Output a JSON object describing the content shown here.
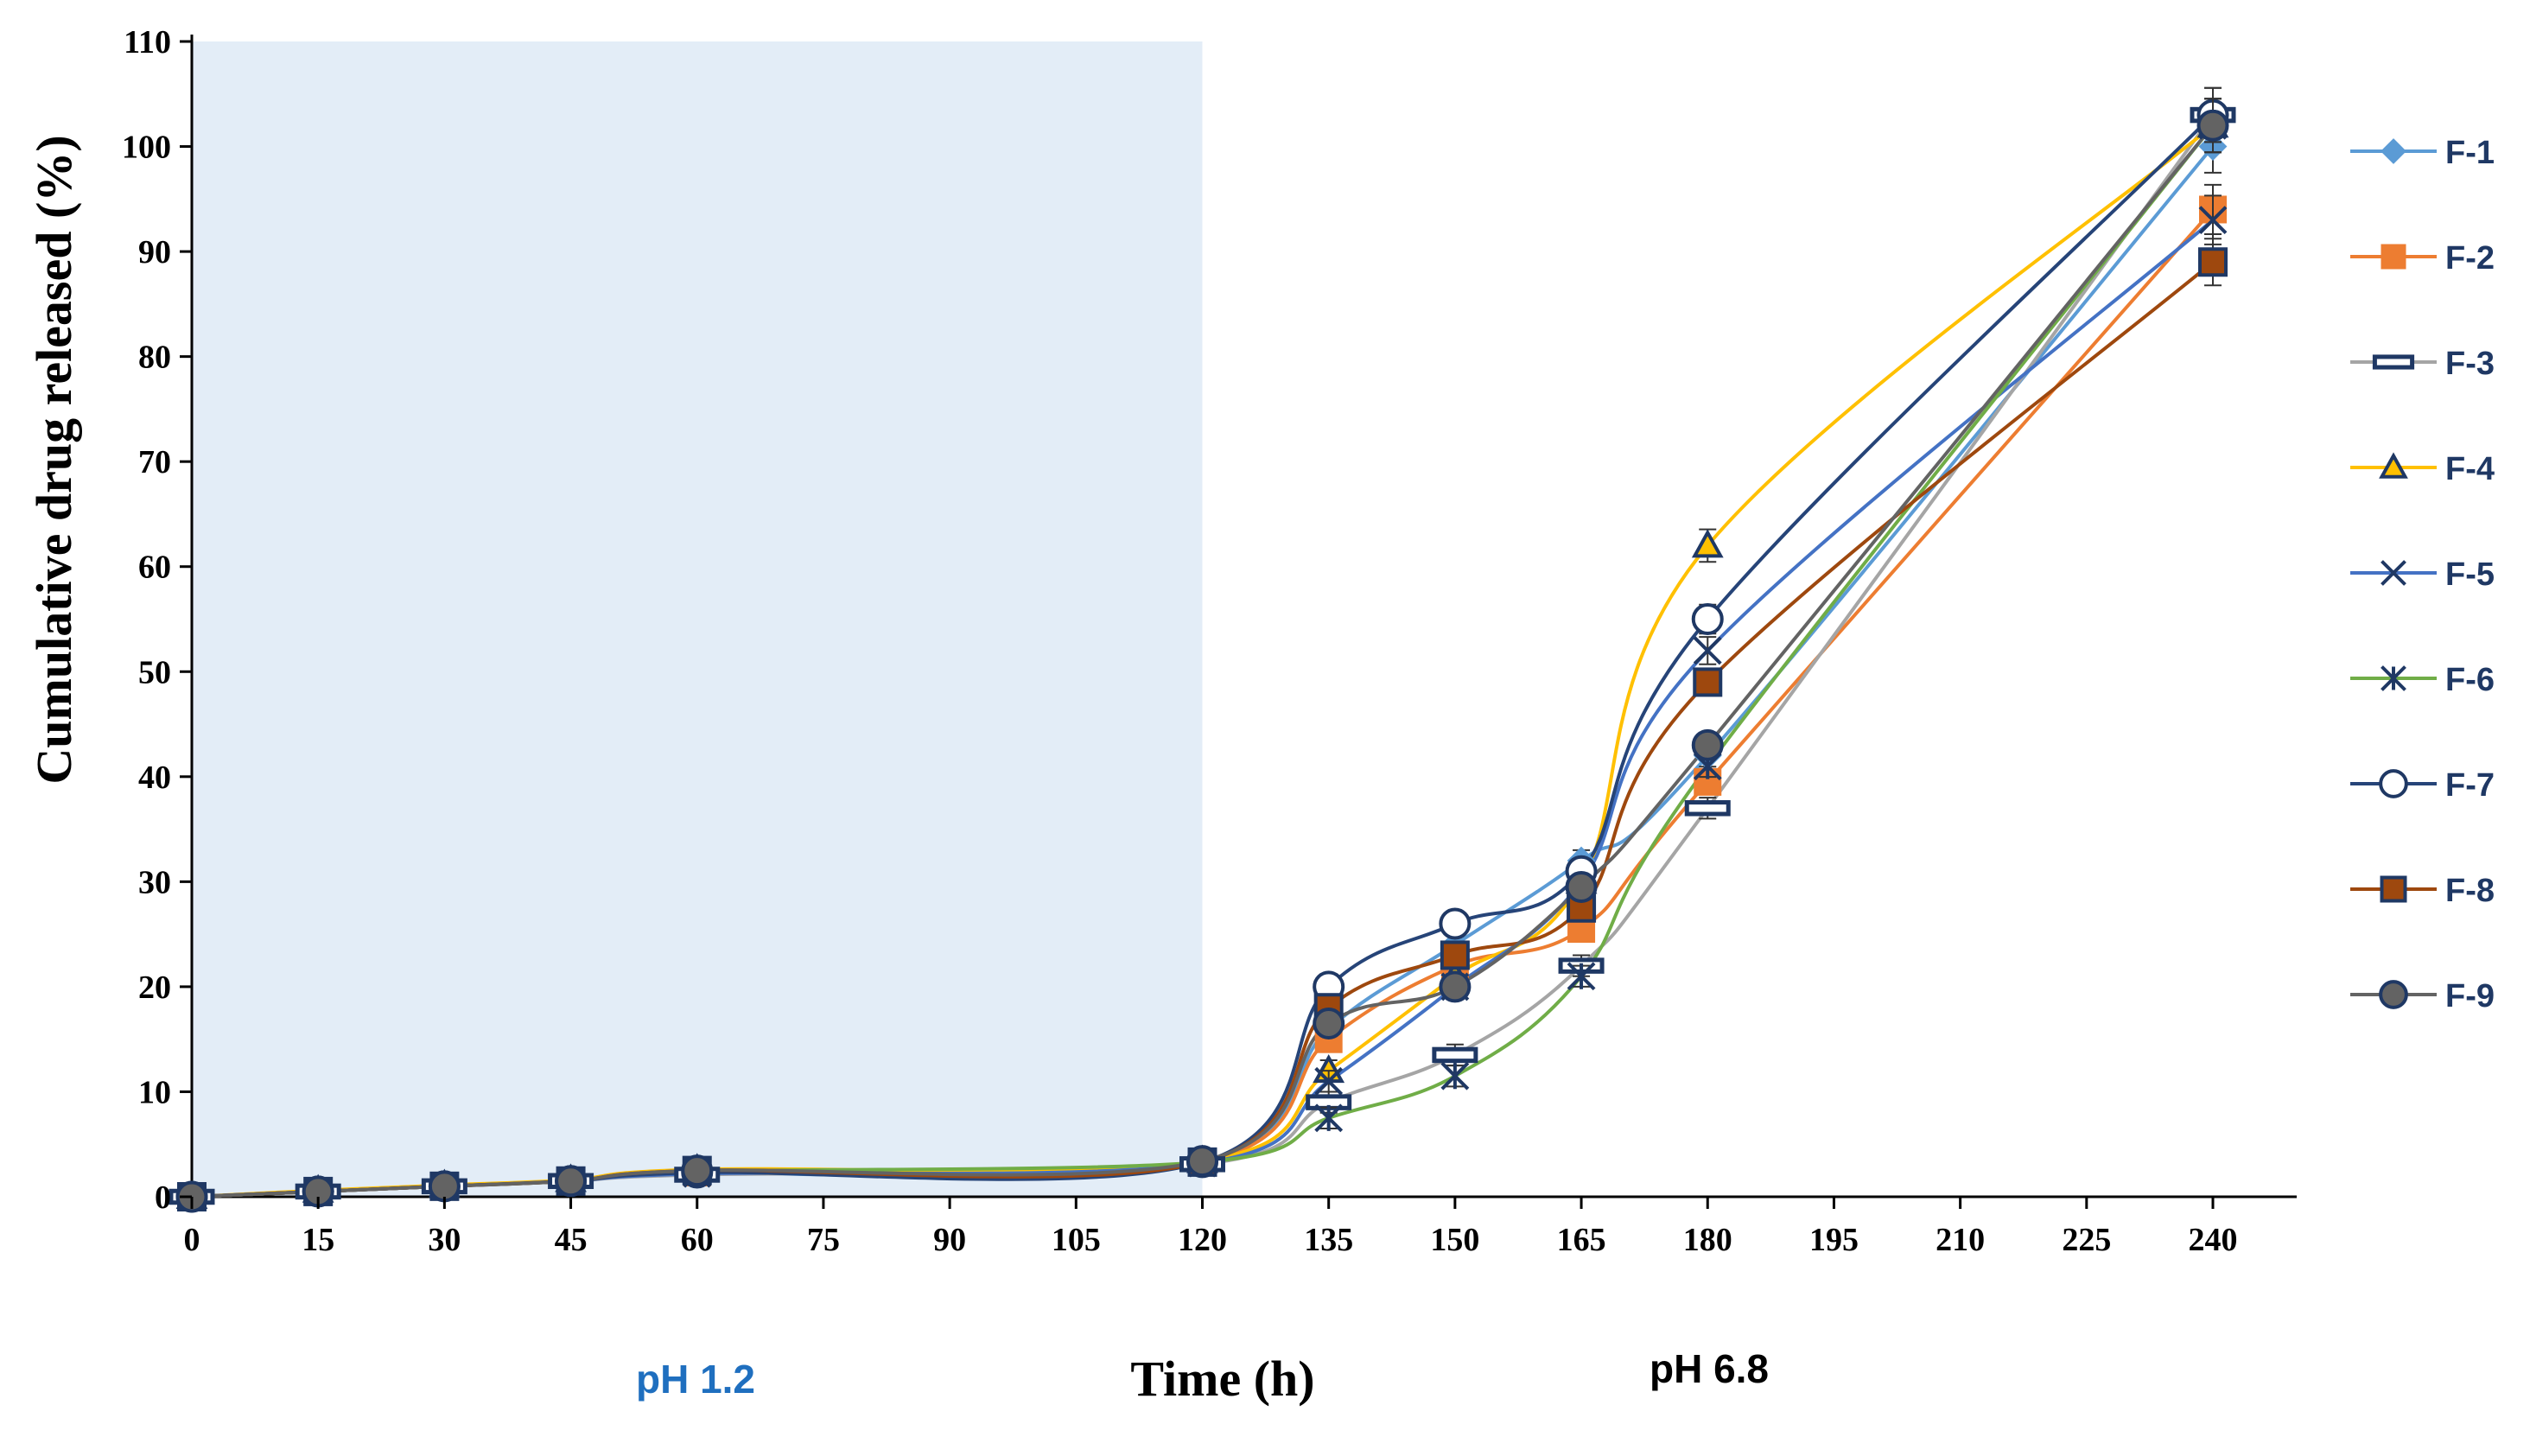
{
  "chart_data": {
    "type": "line",
    "title": "",
    "xlabel": "Time (h)",
    "ylabel": "Cumulative  drug released (%)",
    "xlim": [
      0,
      250
    ],
    "ylim": [
      0,
      110
    ],
    "x_ticks": [
      0,
      15,
      30,
      45,
      60,
      75,
      90,
      105,
      120,
      135,
      150,
      165,
      180,
      195,
      210,
      225,
      240
    ],
    "y_ticks": [
      0,
      10,
      20,
      30,
      40,
      50,
      60,
      70,
      80,
      90,
      100,
      110
    ],
    "x": [
      0,
      15,
      30,
      45,
      60,
      120,
      135,
      150,
      165,
      180,
      240
    ],
    "shaded_region": {
      "x_start": 0,
      "x_end": 120,
      "color": "#e3edf7"
    },
    "phase_labels": [
      {
        "text": "pH 1.2",
        "color": "#1f6fbf"
      },
      {
        "text": "pH 6.8",
        "color": "#000000"
      }
    ],
    "legend_position": "right",
    "series": [
      {
        "name": "F-1",
        "color": "#5b9bd5",
        "marker": "diamond",
        "values": [
          0,
          0.5,
          1.0,
          1.5,
          2.2,
          3.2,
          16,
          24,
          32,
          42,
          100
        ]
      },
      {
        "name": "F-2",
        "color": "#ed7d31",
        "marker": "square",
        "values": [
          0,
          0.5,
          1.0,
          1.5,
          2.3,
          3.3,
          15,
          22,
          25.5,
          39.5,
          94
        ]
      },
      {
        "name": "F-3",
        "color": "#a5a5a5",
        "marker": "dash",
        "values": [
          0,
          0.5,
          1.0,
          1.5,
          2.1,
          3.1,
          9,
          13.5,
          22,
          37,
          103
        ]
      },
      {
        "name": "F-4",
        "color": "#ffc000",
        "marker": "triangle",
        "values": [
          0,
          0.6,
          1.1,
          1.6,
          2.6,
          3.4,
          12,
          21,
          30,
          62,
          102
        ]
      },
      {
        "name": "F-5",
        "color": "#4472c4",
        "marker": "x",
        "values": [
          0,
          0.5,
          1.0,
          1.5,
          2.2,
          3.2,
          11,
          20,
          30,
          52,
          93
        ]
      },
      {
        "name": "F-6",
        "color": "#70ad47",
        "marker": "star",
        "values": [
          0,
          0.5,
          1.0,
          1.5,
          2.4,
          3.3,
          7.5,
          11.5,
          21,
          41,
          102
        ]
      },
      {
        "name": "F-7",
        "color": "#264478",
        "marker": "circle-open",
        "values": [
          0,
          0.5,
          1.0,
          1.5,
          2.3,
          3.3,
          20,
          26,
          31,
          55,
          103
        ]
      },
      {
        "name": "F-8",
        "color": "#9e480e",
        "marker": "square-filled",
        "values": [
          0,
          0.5,
          1.0,
          1.5,
          2.5,
          3.3,
          18,
          23,
          27.5,
          49,
          89
        ]
      },
      {
        "name": "F-9",
        "color": "#636363",
        "marker": "circle-filled",
        "values": [
          0,
          0.5,
          1.0,
          1.5,
          2.5,
          3.4,
          16.5,
          20,
          29.5,
          43,
          102
        ]
      }
    ]
  }
}
